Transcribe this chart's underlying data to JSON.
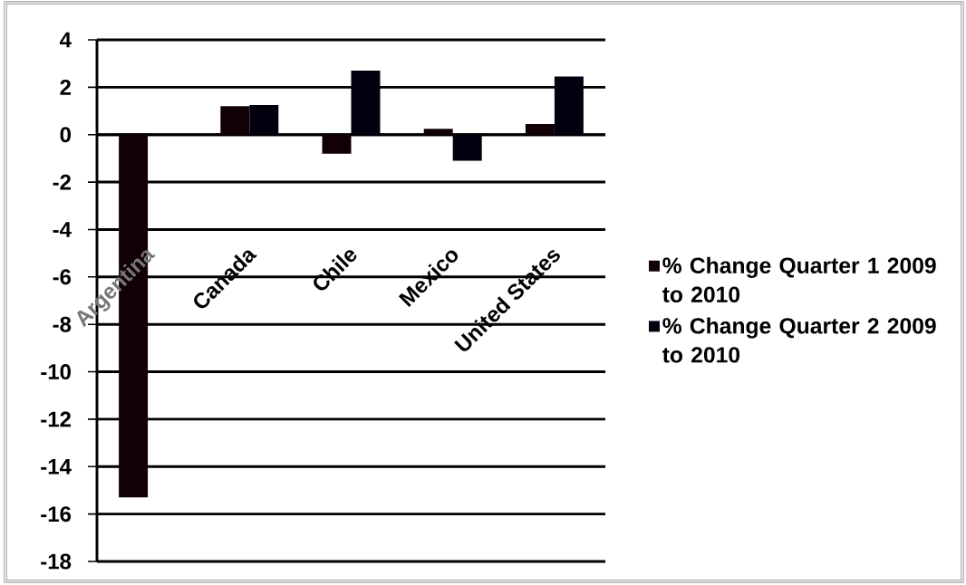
{
  "chart_data": {
    "type": "bar",
    "categories": [
      "Argentina",
      "Canada",
      "Chile",
      "Mexico",
      "United States"
    ],
    "series": [
      {
        "name": "% Change Quarter 1 2009 to 2010",
        "color": "#120008",
        "values": [
          -15.3,
          1.2,
          -0.8,
          0.25,
          0.45
        ]
      },
      {
        "name": "% Change Quarter 2 2009 to 2010",
        "color": "#00000e",
        "values": [
          null,
          1.25,
          2.7,
          -1.1,
          2.45
        ]
      }
    ],
    "ylim": [
      -18,
      4
    ],
    "yticks": [
      -18,
      -16,
      -14,
      -12,
      -10,
      -8,
      -6,
      -4,
      -2,
      0,
      2,
      4
    ],
    "grid": "y",
    "legend": "right"
  }
}
